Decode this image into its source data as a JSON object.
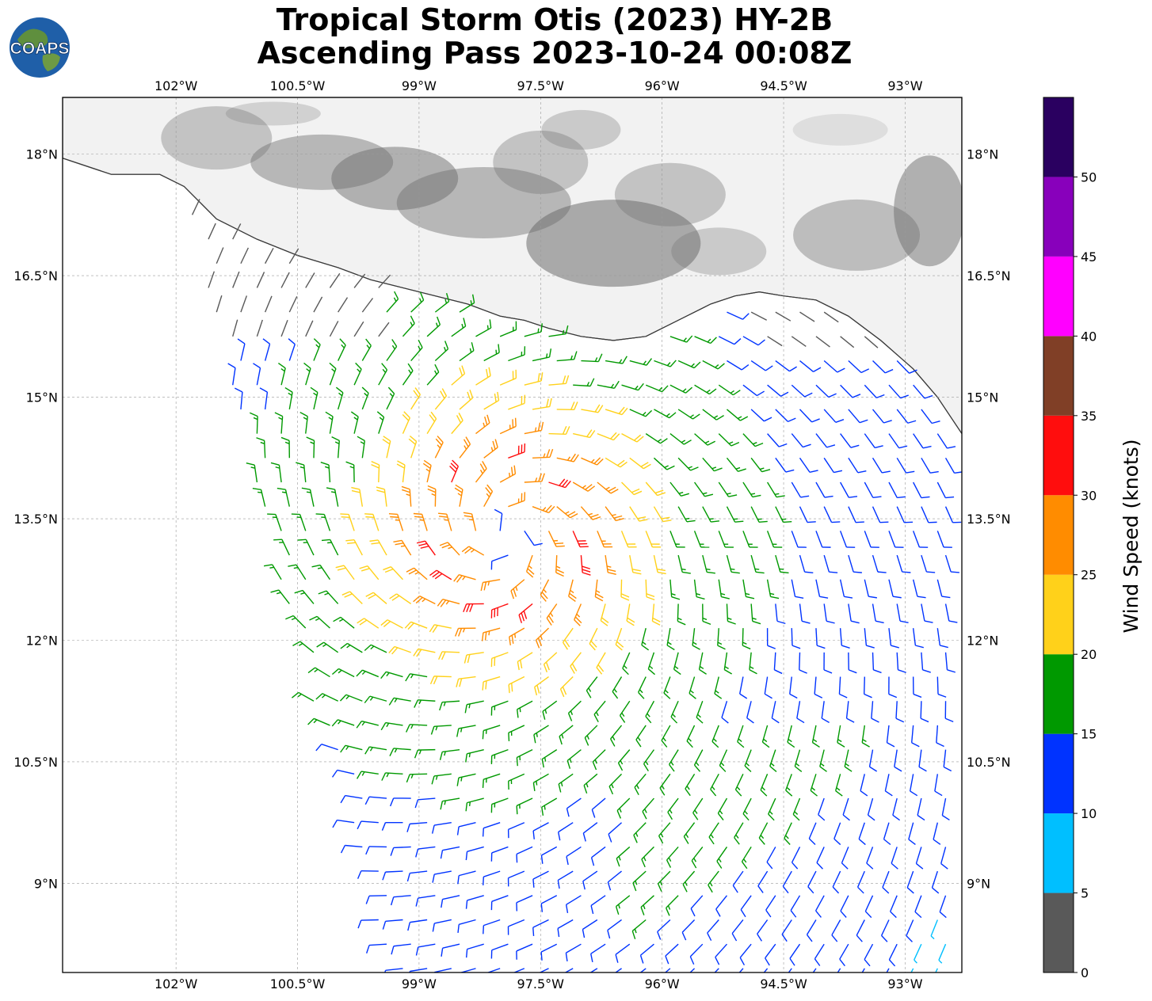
{
  "title": {
    "line1": "Tropical Storm Otis (2023) HY-2B",
    "line2": "Ascending Pass 2023-10-24 00:08Z"
  },
  "logo": {
    "text": "COAPS",
    "icon": "globe-logo-icon"
  },
  "map": {
    "lon_range": [
      -103.4,
      -92.3
    ],
    "lat_range": [
      7.9,
      18.7
    ],
    "lon_ticks": [
      "102°W",
      "100.5°W",
      "99°W",
      "97.5°W",
      "96°W",
      "94.5°W",
      "93°W"
    ],
    "lon_tick_values": [
      -102,
      -100.5,
      -99,
      -97.5,
      -96,
      -94.5,
      -93
    ],
    "lat_ticks": [
      "18°N",
      "16.5°N",
      "15°N",
      "13.5°N",
      "12°N",
      "10.5°N",
      "9°N"
    ],
    "lat_tick_values": [
      18,
      16.5,
      15,
      13.5,
      12,
      10.5,
      9
    ],
    "storm_center": {
      "lon": -97.9,
      "lat": 13.3
    },
    "land_color": "#f2f2f2",
    "mountain_color": "#6e6e6e"
  },
  "colorbar": {
    "label": "Wind Speed (knots)",
    "tick_labels": [
      "0",
      "5",
      "10",
      "15",
      "20",
      "25",
      "30",
      "35",
      "40",
      "45",
      "50"
    ],
    "bins": [
      {
        "min": 0,
        "max": 5,
        "color": "#595959"
      },
      {
        "min": 5,
        "max": 10,
        "color": "#00bfff"
      },
      {
        "min": 10,
        "max": 15,
        "color": "#0033ff"
      },
      {
        "min": 15,
        "max": 20,
        "color": "#009900"
      },
      {
        "min": 20,
        "max": 25,
        "color": "#ffd11a"
      },
      {
        "min": 25,
        "max": 30,
        "color": "#ff8c00"
      },
      {
        "min": 30,
        "max": 35,
        "color": "#ff0d0d"
      },
      {
        "min": 35,
        "max": 40,
        "color": "#803f26"
      },
      {
        "min": 40,
        "max": 45,
        "color": "#ff00ff"
      },
      {
        "min": 45,
        "max": 50,
        "color": "#8800bb"
      },
      {
        "min": 50,
        "max": 55,
        "color": "#2a0060"
      }
    ]
  }
}
